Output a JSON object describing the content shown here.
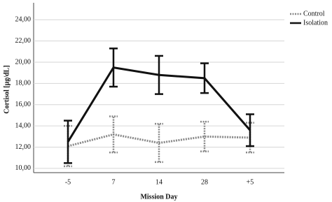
{
  "chart_data": {
    "type": "line",
    "x_label": "Mission Day",
    "y_label": "Cortisol [µg/dL]",
    "categories": [
      "-5",
      "7",
      "14",
      "28",
      "+5"
    ],
    "series": [
      {
        "name": "Control",
        "color": "#888888",
        "dash": "dotted",
        "values": [
          12.1,
          13.2,
          12.4,
          13.0,
          12.9
        ],
        "errors": [
          1.9,
          1.7,
          1.8,
          1.4,
          1.4
        ]
      },
      {
        "name": "Isolation",
        "color": "#111111",
        "dash": "solid",
        "values": [
          12.5,
          19.5,
          18.8,
          18.5,
          13.6
        ],
        "errors": [
          2.0,
          1.8,
          1.8,
          1.4,
          1.5
        ]
      }
    ],
    "ylim": [
      9.6,
      25.6
    ],
    "yticks": [
      {
        "value": 10,
        "label": "10,00"
      },
      {
        "value": 12,
        "label": "12,00"
      },
      {
        "value": 14,
        "label": "14,00"
      },
      {
        "value": 16,
        "label": "16,00"
      },
      {
        "value": 18,
        "label": "18,00"
      },
      {
        "value": 20,
        "label": "20,00"
      },
      {
        "value": 22,
        "label": "22,00"
      },
      {
        "value": 24,
        "label": "24,00"
      }
    ],
    "grid": true,
    "legend": "top-right"
  }
}
